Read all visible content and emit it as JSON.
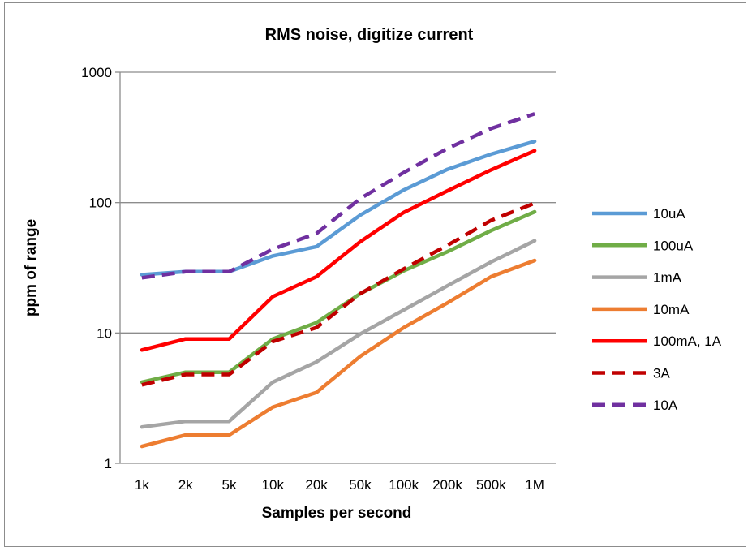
{
  "chart_data": {
    "type": "line",
    "title": "RMS noise, digitize current",
    "xlabel": "Samples per second",
    "ylabel": "ppm of range",
    "yscale": "log",
    "ylim": [
      1,
      1000
    ],
    "yticks": [
      "1",
      "10",
      "100",
      "1000"
    ],
    "ytick_values": [
      1,
      10,
      100,
      1000
    ],
    "categories": [
      "1k",
      "2k",
      "5k",
      "10k",
      "20k",
      "50k",
      "100k",
      "200k",
      "500k",
      "1M"
    ],
    "grid": "horizontal major",
    "legend_position": "right",
    "series": [
      {
        "name": "10uA",
        "color": "#5b9bd5",
        "dash": "solid",
        "values": [
          28,
          29.5,
          29.5,
          39,
          46,
          80,
          125,
          180,
          235,
          295
        ]
      },
      {
        "name": "100uA",
        "color": "#70ad47",
        "dash": "solid",
        "values": [
          4.2,
          5.0,
          5.0,
          9.0,
          12,
          20,
          30,
          42,
          61,
          85
        ]
      },
      {
        "name": "1mA",
        "color": "#a5a5a5",
        "dash": "solid",
        "values": [
          1.9,
          2.1,
          2.1,
          4.2,
          6.0,
          9.8,
          15,
          23,
          35,
          51
        ]
      },
      {
        "name": "10mA",
        "color": "#ed7d31",
        "dash": "solid",
        "values": [
          1.35,
          1.65,
          1.65,
          2.7,
          3.5,
          6.6,
          11,
          17,
          27,
          36
        ]
      },
      {
        "name": "100mA, 1A",
        "color": "#ff0000",
        "dash": "solid",
        "values": [
          7.4,
          9.0,
          9.0,
          19,
          27,
          50,
          84,
          123,
          178,
          250
        ]
      },
      {
        "name": "3A",
        "color": "#c00000",
        "dash": "dash",
        "values": [
          4.0,
          4.8,
          4.8,
          8.6,
          11,
          20,
          31,
          47,
          73,
          99
        ]
      },
      {
        "name": "10A",
        "color": "#7030a0",
        "dash": "dash",
        "values": [
          26.5,
          29.5,
          29.5,
          44,
          58,
          107,
          170,
          260,
          370,
          480
        ]
      }
    ]
  }
}
